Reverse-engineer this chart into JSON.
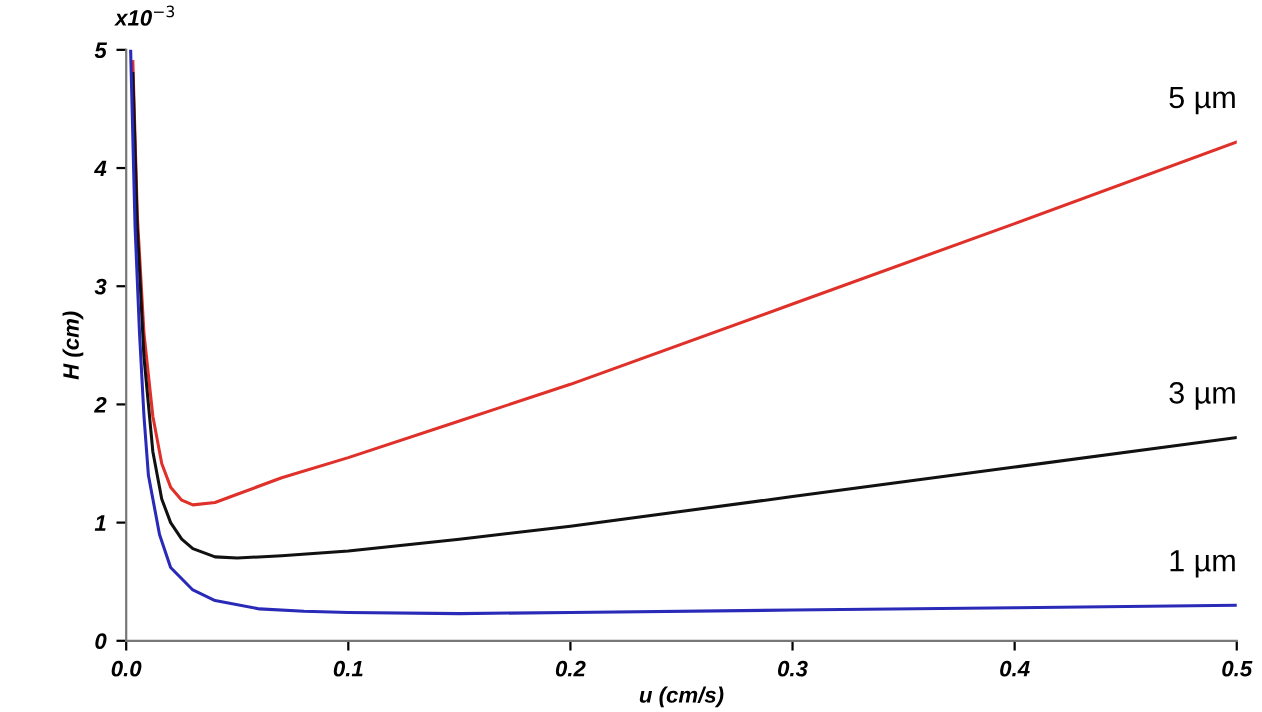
{
  "chart_data": {
    "type": "line",
    "xlabel": "u (cm/s)",
    "ylabel": "H (cm)",
    "xlim": [
      0,
      0.5
    ],
    "xticks": [
      {
        "value": 0,
        "label": "0.0"
      },
      0.1,
      0.2,
      0.3,
      0.4,
      0.5
    ],
    "ylim": [
      0,
      5
    ],
    "yticks": [
      0,
      1,
      2,
      3,
      4,
      5
    ],
    "annotations": [
      "x10$^{−3}$"
    ],
    "grid": false,
    "legend": false,
    "marker": "none",
    "line_style": "solid",
    "series": [
      {
        "name": "5 µm",
        "color": "#e0302a",
        "x": [
          0.003,
          0.005,
          0.008,
          0.012,
          0.016,
          0.02,
          0.025,
          0.03,
          0.04,
          0.05,
          0.07,
          0.1,
          0.15,
          0.2,
          0.3,
          0.4,
          0.5
        ],
        "values": [
          4.9,
          3.6,
          2.6,
          1.9,
          1.5,
          1.3,
          1.19,
          1.15,
          1.17,
          1.24,
          1.38,
          1.55,
          1.86,
          2.17,
          2.85,
          3.53,
          4.22
        ]
      },
      {
        "name": "3 µm",
        "color": "#111111",
        "x": [
          0.003,
          0.005,
          0.008,
          0.012,
          0.016,
          0.02,
          0.025,
          0.03,
          0.04,
          0.05,
          0.07,
          0.1,
          0.15,
          0.2,
          0.3,
          0.4,
          0.5
        ],
        "values": [
          4.8,
          3.5,
          2.4,
          1.6,
          1.2,
          1.0,
          0.86,
          0.78,
          0.71,
          0.7,
          0.72,
          0.76,
          0.86,
          0.97,
          1.22,
          1.47,
          1.72
        ]
      },
      {
        "name": "1 µm",
        "color": "#2a2ab8",
        "x": [
          0.002,
          0.004,
          0.006,
          0.008,
          0.01,
          0.015,
          0.02,
          0.03,
          0.04,
          0.06,
          0.08,
          0.1,
          0.15,
          0.2,
          0.3,
          0.4,
          0.5
        ],
        "values": [
          5.0,
          3.5,
          2.6,
          1.9,
          1.4,
          0.9,
          0.62,
          0.43,
          0.34,
          0.27,
          0.25,
          0.24,
          0.23,
          0.24,
          0.26,
          0.28,
          0.3
        ]
      }
    ]
  }
}
